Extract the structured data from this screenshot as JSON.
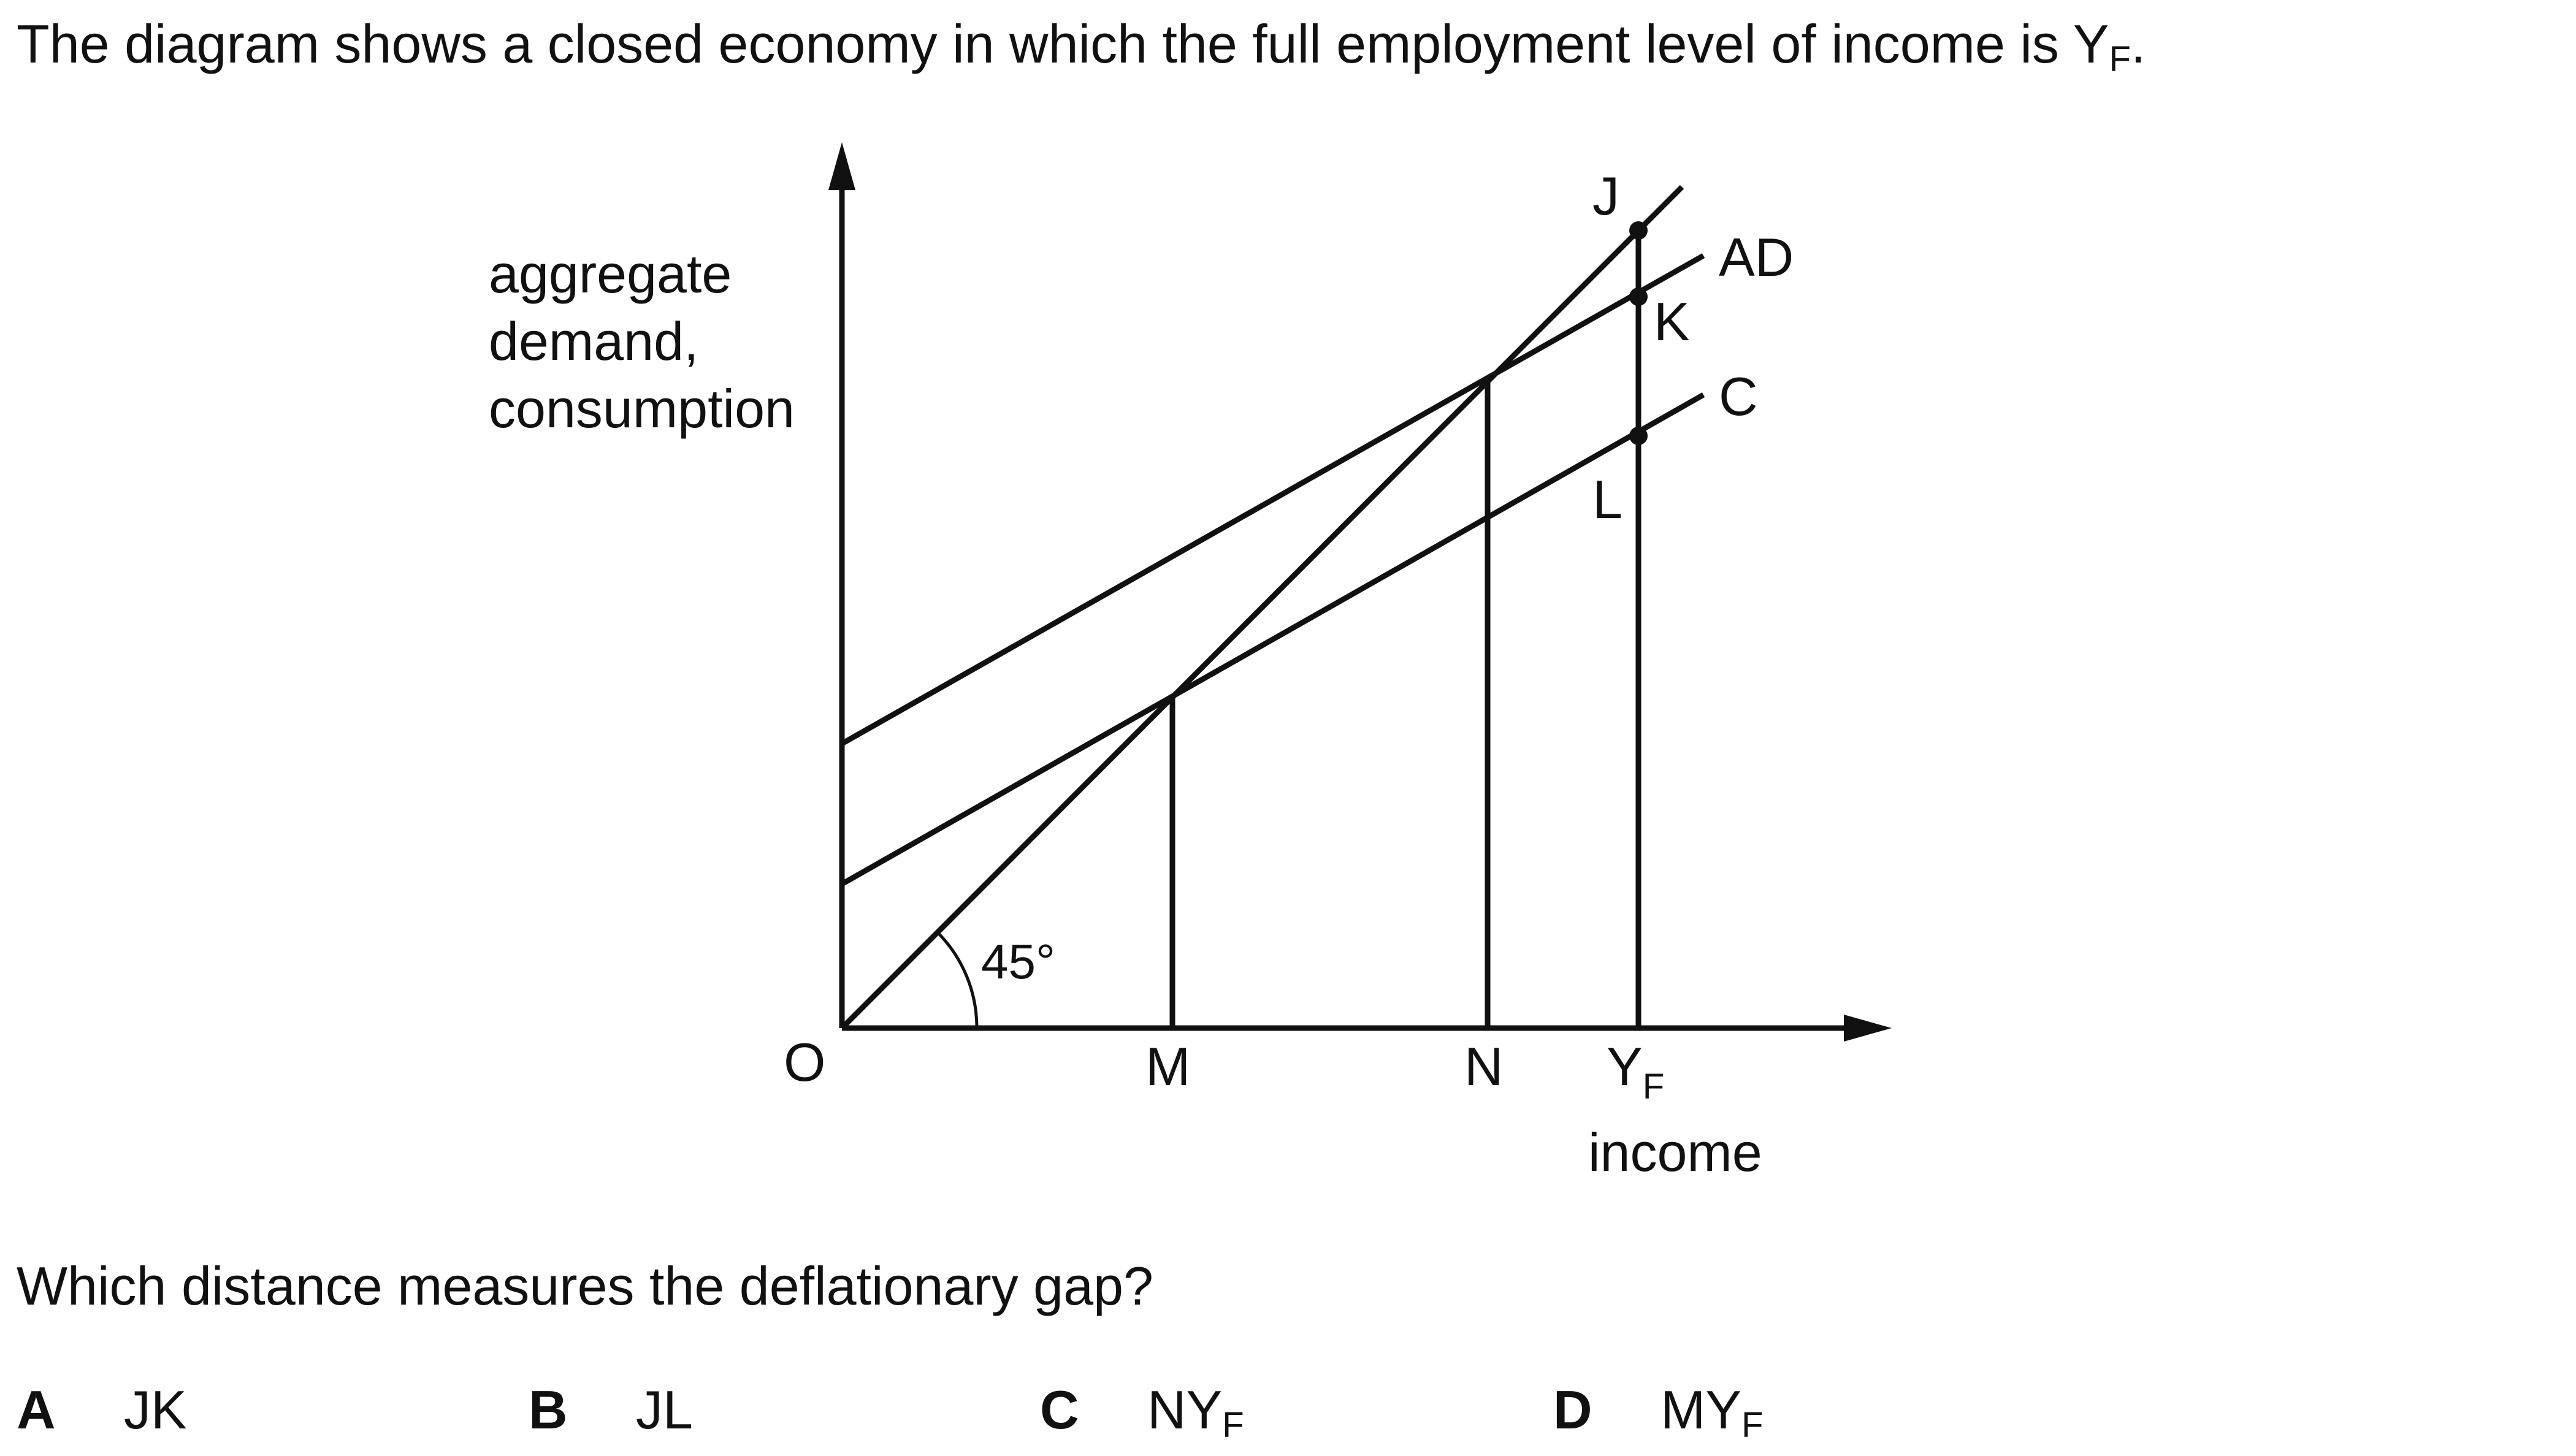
{
  "intro": {
    "text": "The diagram shows a closed economy in which the full employment level of income is Y",
    "sub": "F",
    "end": "."
  },
  "diagram": {
    "y_axis_label": [
      "aggregate",
      "demand,",
      "consumption"
    ],
    "x_axis_label": "income",
    "origin_label": "O",
    "angle_label": "45°",
    "x_ticks": {
      "m": "M",
      "n": "N",
      "yf_main": "Y",
      "yf_sub": "F"
    },
    "curve_labels": {
      "ad": "AD",
      "c": "C"
    },
    "point_labels": {
      "j": "J",
      "k": "K",
      "l": "L"
    }
  },
  "question": "Which distance measures the deflationary gap?",
  "options": [
    {
      "letter": "A",
      "answer": "JK",
      "sub": ""
    },
    {
      "letter": "B",
      "answer": "JL",
      "sub": ""
    },
    {
      "letter": "C",
      "answer": "NY",
      "sub": "F"
    },
    {
      "letter": "D",
      "answer": "MY",
      "sub": "F"
    }
  ]
}
